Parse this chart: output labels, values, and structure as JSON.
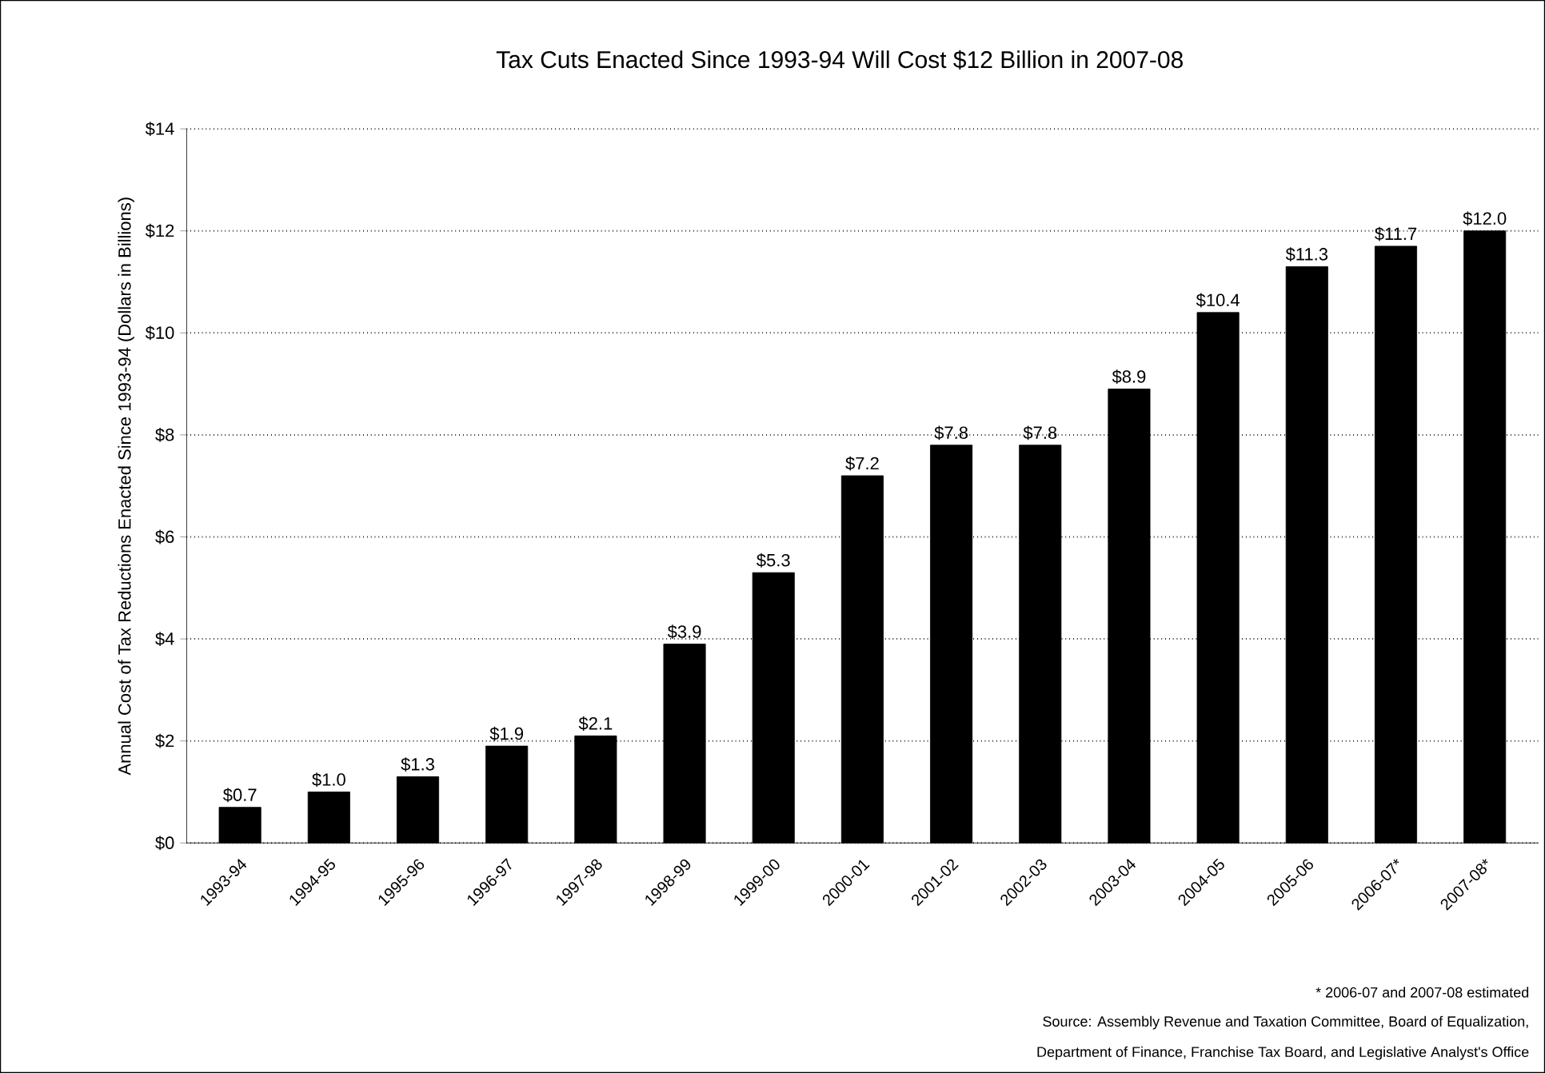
{
  "chart_data": {
    "type": "bar",
    "title": "Tax Cuts Enacted Since 1993-94 Will Cost $12 Billion in 2007-08",
    "ylabel": "Annual Cost of Tax Reductions Enacted Since 1993-94 (Dollars in Billions)",
    "categories": [
      "1993-94",
      "1994-95",
      "1995-96",
      "1996-97",
      "1997-98",
      "1998-99",
      "1999-00",
      "2000-01",
      "2001-02",
      "2002-03",
      "2003-04",
      "2004-05",
      "2005-06",
      "2006-07*",
      "2007-08*"
    ],
    "values": [
      0.7,
      1.0,
      1.3,
      1.9,
      2.1,
      3.9,
      5.3,
      7.2,
      7.8,
      7.8,
      8.9,
      10.4,
      11.3,
      11.7,
      12.0
    ],
    "value_labels": [
      "$0.7",
      "$1.0",
      "$1.3",
      "$1.9",
      "$2.1",
      "$3.9",
      "$5.3",
      "$7.2",
      "$7.8",
      "$7.8",
      "$8.9",
      "$10.4",
      "$11.3",
      "$11.7",
      "$12.0"
    ],
    "color": "#000000",
    "ylim": [
      0,
      14
    ],
    "yticks": [
      {
        "value": 0,
        "label": "$0"
      },
      {
        "value": 2,
        "label": "$2"
      },
      {
        "value": 4,
        "label": "$4"
      },
      {
        "value": 6,
        "label": "$6"
      },
      {
        "value": 8,
        "label": "$8"
      },
      {
        "value": 10,
        "label": "$10"
      },
      {
        "value": 12,
        "label": "$12"
      },
      {
        "value": 14,
        "label": "$14"
      }
    ],
    "grid": "y",
    "annotations": [
      "* 2006-07 and 2007-08 estimated",
      "Source: Assembly Revenue and Taxation Committee, Board of Equalization,",
      "Department of Finance, Franchise Tax Board, and Legislative Analyst's Office"
    ]
  }
}
